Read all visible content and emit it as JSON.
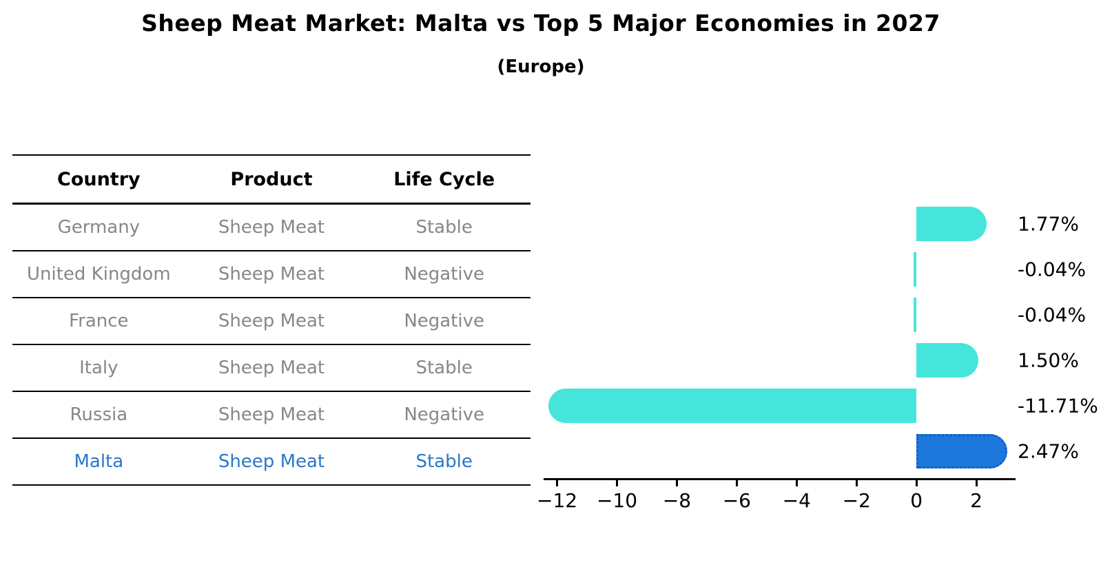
{
  "title": "Sheep Meat Market: Malta vs Top 5 Major Economies in 2027",
  "subtitle": "(Europe)",
  "table": {
    "headers": [
      "Country",
      "Product",
      "Life Cycle"
    ],
    "rows": [
      {
        "country": "Germany",
        "product": "Sheep Meat",
        "life_cycle": "Stable",
        "highlight": false
      },
      {
        "country": "United Kingdom",
        "product": "Sheep Meat",
        "life_cycle": "Negative",
        "highlight": false
      },
      {
        "country": "France",
        "product": "Sheep Meat",
        "life_cycle": "Negative",
        "highlight": false
      },
      {
        "country": "Italy",
        "product": "Sheep Meat",
        "life_cycle": "Stable",
        "highlight": false
      },
      {
        "country": "Russia",
        "product": "Sheep Meat",
        "life_cycle": "Negative",
        "highlight": false
      },
      {
        "country": "Malta",
        "product": "Sheep Meat",
        "life_cycle": "Stable",
        "highlight": true
      }
    ]
  },
  "chart_data": {
    "type": "bar",
    "orientation": "horizontal",
    "categories": [
      "Germany",
      "United Kingdom",
      "France",
      "Italy",
      "Russia",
      "Malta"
    ],
    "values": [
      1.77,
      -0.04,
      -0.04,
      1.5,
      -11.71,
      2.47
    ],
    "value_labels": [
      "1.77%",
      "-0.04%",
      "-0.04%",
      "1.50%",
      "-11.71%",
      "2.47%"
    ],
    "highlight_category": "Malta",
    "x_ticks": [
      -12,
      -10,
      -8,
      -6,
      -4,
      -2,
      0,
      2
    ],
    "x_tick_labels": [
      "−12",
      "−10",
      "−8",
      "−6",
      "−4",
      "−2",
      "0",
      "2"
    ],
    "xlim": [
      -12.45,
      3.31
    ],
    "grid": false,
    "legend": false,
    "colors": {
      "bar": "#46E5DC",
      "highlight_bar": "#1E78DC",
      "highlight_bar_edge": "#0E5FC4",
      "highlight_text": "#2878CA",
      "table_text": "#878787",
      "axis": "#000000"
    }
  }
}
